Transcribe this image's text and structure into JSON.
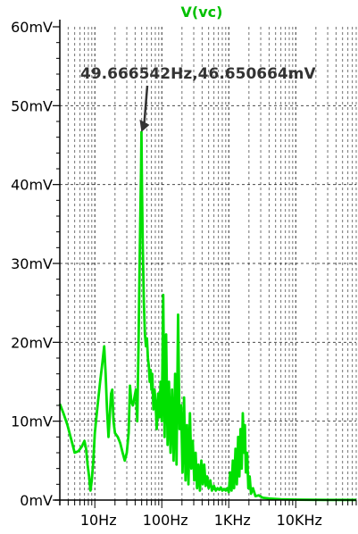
{
  "chart_data": {
    "type": "line",
    "title": "V(vc)",
    "xlabel": "",
    "ylabel": "",
    "x_scale": "log",
    "xlim": [
      3,
      80000
    ],
    "ylim": [
      0,
      60
    ],
    "y_unit": "mV",
    "grid": true,
    "y_ticks": [
      {
        "value": 0,
        "label": "0mV"
      },
      {
        "value": 10,
        "label": "10mV"
      },
      {
        "value": 20,
        "label": "20mV"
      },
      {
        "value": 30,
        "label": "30mV"
      },
      {
        "value": 40,
        "label": "40mV"
      },
      {
        "value": 50,
        "label": "50mV"
      },
      {
        "value": 60,
        "label": "60mV"
      }
    ],
    "x_ticks": [
      {
        "value": 10,
        "label": "10Hz"
      },
      {
        "value": 100,
        "label": "100Hz"
      },
      {
        "value": 1000,
        "label": "1KHz"
      },
      {
        "value": 10000,
        "label": "10KHz"
      }
    ],
    "annotation": {
      "text": "49.666542Hz,46.650664mV",
      "x": 49.666542,
      "y": 46.650664
    },
    "series": [
      {
        "color": "#00e000",
        "points": [
          [
            3,
            12.2
          ],
          [
            3.4,
            11
          ],
          [
            3.9,
            9.5
          ],
          [
            4.5,
            7.5
          ],
          [
            5,
            6
          ],
          [
            5.7,
            6.2
          ],
          [
            6.4,
            6.8
          ],
          [
            7,
            7.5
          ],
          [
            7.4,
            6.5
          ],
          [
            7.8,
            4.5
          ],
          [
            8.2,
            3
          ],
          [
            8.6,
            1.2
          ],
          [
            9,
            2.5
          ],
          [
            9.5,
            5
          ],
          [
            10,
            8.5
          ],
          [
            11,
            12
          ],
          [
            12,
            15
          ],
          [
            13,
            17.5
          ],
          [
            13.8,
            19.5
          ],
          [
            14.5,
            16
          ],
          [
            15.2,
            11.5
          ],
          [
            16,
            8
          ],
          [
            16.8,
            11
          ],
          [
            17.5,
            13.5
          ],
          [
            18.2,
            14
          ],
          [
            19,
            10
          ],
          [
            20,
            8.5
          ],
          [
            22,
            8
          ],
          [
            24,
            7.2
          ],
          [
            26,
            6
          ],
          [
            28,
            5
          ],
          [
            30,
            6
          ],
          [
            32,
            8.5
          ],
          [
            33.5,
            14.5
          ],
          [
            35,
            12.5
          ],
          [
            37,
            12
          ],
          [
            39,
            13
          ],
          [
            41,
            14
          ],
          [
            43,
            10
          ],
          [
            45,
            20
          ],
          [
            47,
            32
          ],
          [
            49,
            42
          ],
          [
            49.67,
            46.65
          ],
          [
            50.5,
            40
          ],
          [
            52,
            32
          ],
          [
            54,
            25
          ],
          [
            56,
            21
          ],
          [
            58,
            19.5
          ],
          [
            60,
            20.5
          ],
          [
            62,
            18
          ],
          [
            64,
            17
          ],
          [
            66,
            15
          ],
          [
            68,
            16.5
          ],
          [
            70,
            14
          ],
          [
            72,
            16
          ],
          [
            75,
            11.5
          ],
          [
            78,
            14
          ],
          [
            81,
            12
          ],
          [
            84,
            9
          ],
          [
            88,
            13.5
          ],
          [
            92,
            10.5
          ],
          [
            96,
            15
          ],
          [
            100,
            10
          ],
          [
            105,
            26
          ],
          [
            110,
            8
          ],
          [
            116,
            21
          ],
          [
            122,
            7
          ],
          [
            128,
            15
          ],
          [
            135,
            6
          ],
          [
            142,
            14
          ],
          [
            150,
            5
          ],
          [
            158,
            16
          ],
          [
            166,
            4.5
          ],
          [
            175,
            23.5
          ],
          [
            184,
            9
          ],
          [
            194,
            12
          ],
          [
            204,
            3.5
          ],
          [
            215,
            13
          ],
          [
            226,
            2.5
          ],
          [
            238,
            9.5
          ],
          [
            250,
            2
          ],
          [
            263,
            11
          ],
          [
            276,
            4
          ],
          [
            290,
            7.5
          ],
          [
            305,
            2.5
          ],
          [
            320,
            6
          ],
          [
            336,
            1.5
          ],
          [
            353,
            4.5
          ],
          [
            371,
            1.2
          ],
          [
            390,
            5
          ],
          [
            410,
            2
          ],
          [
            430,
            4.5
          ],
          [
            452,
            1.8
          ],
          [
            475,
            3
          ],
          [
            500,
            1.5
          ],
          [
            530,
            2.5
          ],
          [
            560,
            1.2
          ],
          [
            600,
            1.8
          ],
          [
            640,
            1.2
          ],
          [
            680,
            1.5
          ],
          [
            720,
            1.3
          ],
          [
            760,
            1.6
          ],
          [
            800,
            1.2
          ],
          [
            850,
            1.4
          ],
          [
            900,
            1.2
          ],
          [
            950,
            1.5
          ],
          [
            1000,
            1
          ],
          [
            1050,
            3.5
          ],
          [
            1100,
            1.2
          ],
          [
            1150,
            5
          ],
          [
            1200,
            1.5
          ],
          [
            1260,
            6.5
          ],
          [
            1320,
            2
          ],
          [
            1380,
            8
          ],
          [
            1440,
            3
          ],
          [
            1500,
            9
          ],
          [
            1560,
            4
          ],
          [
            1620,
            11
          ],
          [
            1680,
            6
          ],
          [
            1740,
            9.5
          ],
          [
            1800,
            3.5
          ],
          [
            1880,
            6
          ],
          [
            1960,
            1.5
          ],
          [
            2050,
            3
          ],
          [
            2150,
            0.8
          ],
          [
            2300,
            1.5
          ],
          [
            2500,
            0.5
          ],
          [
            2800,
            0.6
          ],
          [
            3200,
            0.3
          ],
          [
            4000,
            0.2
          ],
          [
            6000,
            0.1
          ],
          [
            10000,
            0.05
          ],
          [
            30000,
            0.02
          ],
          [
            80000,
            0.02
          ]
        ]
      }
    ]
  }
}
